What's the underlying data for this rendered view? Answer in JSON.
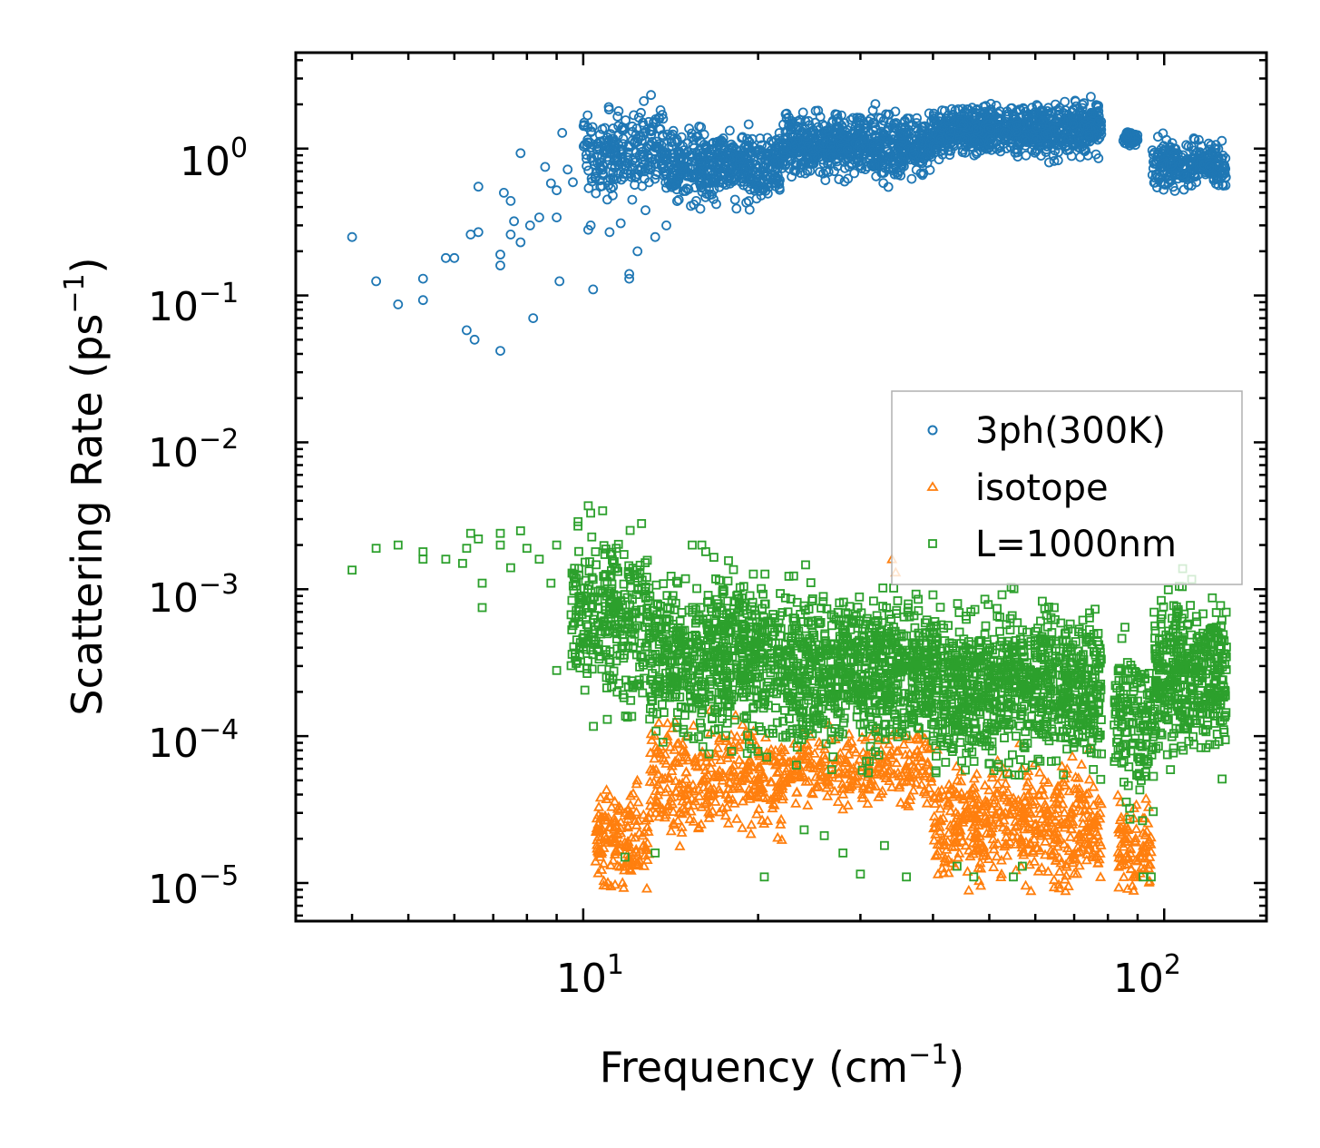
{
  "chart_data": {
    "type": "scatter",
    "xscale": "log",
    "yscale": "log",
    "xlim": [
      3.2,
      150
    ],
    "ylim": [
      5.5e-06,
      4.5
    ],
    "xlabel": "Frequency (cm",
    "xlabel_sup": "−1",
    "xlabel_end": ")",
    "ylabel": "Scattering Rate (ps",
    "ylabel_sup": "−1",
    "ylabel_end": ")",
    "x_ticks": [
      {
        "value": 10,
        "base": "10",
        "exp": "1"
      },
      {
        "value": 100,
        "base": "10",
        "exp": "2"
      }
    ],
    "y_ticks": [
      {
        "value": 1,
        "base": "10",
        "exp": "0"
      },
      {
        "value": 0.1,
        "base": "10",
        "exp": "−1"
      },
      {
        "value": 0.01,
        "base": "10",
        "exp": "−2"
      },
      {
        "value": 0.001,
        "base": "10",
        "exp": "−3"
      },
      {
        "value": 0.0001,
        "base": "10",
        "exp": "−4"
      },
      {
        "value": 1e-05,
        "base": "10",
        "exp": "−5"
      }
    ],
    "legend_position": "center-right",
    "series": [
      {
        "name": "3ph(300K)",
        "marker": "circle",
        "color": "#1f77b4",
        "points": [
          [
            4.0,
            0.25
          ],
          [
            4.4,
            0.125
          ],
          [
            4.8,
            0.087
          ],
          [
            5.3,
            0.093
          ],
          [
            5.3,
            0.13
          ],
          [
            5.8,
            0.18
          ],
          [
            6.0,
            0.18
          ],
          [
            6.3,
            0.058
          ],
          [
            6.4,
            0.26
          ],
          [
            6.5,
            0.05
          ],
          [
            6.6,
            0.27
          ],
          [
            6.6,
            0.55
          ],
          [
            7.2,
            0.19
          ],
          [
            7.2,
            0.16
          ],
          [
            7.2,
            0.042
          ],
          [
            7.3,
            0.5
          ],
          [
            7.5,
            0.26
          ],
          [
            7.5,
            0.44
          ],
          [
            7.6,
            0.32
          ],
          [
            7.8,
            0.23
          ],
          [
            7.8,
            0.93
          ],
          [
            8.1,
            0.3
          ],
          [
            8.2,
            0.07
          ],
          [
            8.4,
            0.34
          ],
          [
            8.6,
            0.75
          ],
          [
            8.8,
            0.58
          ],
          [
            9.0,
            0.34
          ],
          [
            9.0,
            0.52
          ],
          [
            9.2,
            1.28
          ],
          [
            9.4,
            0.72
          ],
          [
            9.6,
            0.59
          ],
          [
            10.2,
            0.28
          ],
          [
            10.3,
            0.3
          ],
          [
            10.4,
            0.11
          ],
          [
            11.1,
            0.27
          ],
          [
            11.6,
            0.31
          ],
          [
            12.0,
            0.14
          ],
          [
            12.0,
            0.13
          ],
          [
            12.4,
            0.2
          ],
          [
            12.8,
            0.38
          ],
          [
            13.3,
            0.25
          ],
          [
            13.9,
            0.3
          ],
          [
            11.0,
            0.45
          ],
          [
            9.1,
            0.125
          ],
          [
            10.7,
            0.55
          ]
        ],
        "clusters": [
          {
            "x_range": [
              10,
              14
            ],
            "y_center": 0.95,
            "y_spread": 0.25,
            "count": 260
          },
          {
            "x_range": [
              14,
              22
            ],
            "y_center": 0.75,
            "y_spread": 0.2,
            "count": 480
          },
          {
            "x_range": [
              22,
              40
            ],
            "y_center": 1.05,
            "y_spread": 0.17,
            "count": 700
          },
          {
            "x_range": [
              40,
              78
            ],
            "y_center": 1.35,
            "y_spread": 0.14,
            "count": 850
          },
          {
            "x_range": [
              85,
              90
            ],
            "y_center": 1.15,
            "y_spread": 0.05,
            "count": 45
          },
          {
            "x_range": [
              95,
              128
            ],
            "y_center": 0.78,
            "y_spread": 0.14,
            "count": 260
          }
        ]
      },
      {
        "name": "isotope",
        "marker": "triangle",
        "color": "#ff7f0e",
        "points": [
          [
            34,
            0.0016
          ],
          [
            34.5,
            0.0013
          ]
        ],
        "clusters": [
          {
            "x_range": [
              10.5,
              13
            ],
            "y_center": 2e-05,
            "y_spread": 0.3,
            "count": 160
          },
          {
            "x_range": [
              13,
              22
            ],
            "y_center": 5e-05,
            "y_spread": 0.3,
            "count": 340
          },
          {
            "x_range": [
              22,
              40
            ],
            "y_center": 6e-05,
            "y_spread": 0.2,
            "count": 280
          },
          {
            "x_range": [
              40,
              78
            ],
            "y_center": 2.5e-05,
            "y_spread": 0.35,
            "count": 520
          },
          {
            "x_range": [
              83,
              95
            ],
            "y_center": 1.8e-05,
            "y_spread": 0.3,
            "count": 90
          }
        ]
      },
      {
        "name": "L=1000nm",
        "marker": "square",
        "color": "#2ca02c",
        "points": [
          [
            4.0,
            0.00135
          ],
          [
            4.4,
            0.0019
          ],
          [
            4.8,
            0.002
          ],
          [
            5.3,
            0.0018
          ],
          [
            5.3,
            0.0016
          ],
          [
            5.8,
            0.0016
          ],
          [
            6.2,
            0.0015
          ],
          [
            6.3,
            0.0019
          ],
          [
            6.4,
            0.0024
          ],
          [
            6.6,
            0.0022
          ],
          [
            6.7,
            0.0011
          ],
          [
            6.7,
            0.00075
          ],
          [
            7.2,
            0.002
          ],
          [
            7.2,
            0.0024
          ],
          [
            7.5,
            0.0014
          ],
          [
            7.8,
            0.0025
          ],
          [
            8.0,
            0.0019
          ],
          [
            8.4,
            0.0016
          ],
          [
            8.8,
            0.0011
          ],
          [
            9.0,
            0.00028
          ],
          [
            9.0,
            0.002
          ],
          [
            10.2,
            0.0037
          ],
          [
            10.3,
            0.0033
          ],
          [
            10.5,
            0.0018
          ],
          [
            11.0,
            0.00013
          ],
          [
            11.4,
            0.0019
          ],
          [
            11.8,
            1.5e-05
          ],
          [
            12.6,
            0.0028
          ],
          [
            13.3,
            1.6e-05
          ],
          [
            15.4,
            0.002
          ],
          [
            16.0,
            0.002
          ],
          [
            20.5,
            1.1e-05
          ],
          [
            24.0,
            2.3e-05
          ],
          [
            26.0,
            2.1e-05
          ],
          [
            28.0,
            1.6e-05
          ],
          [
            30.0,
            1.15e-05
          ],
          [
            33.0,
            1.8e-05
          ],
          [
            36.0,
            1.1e-05
          ],
          [
            44.0,
            1.3e-05
          ],
          [
            47.0,
            1.1e-05
          ],
          [
            55.0,
            1.1e-05
          ],
          [
            57.0,
            1.3e-05
          ],
          [
            92.0,
            1.1e-05
          ],
          [
            95.0,
            1.1e-05
          ]
        ],
        "clusters": [
          {
            "x_range": [
              9.5,
              13
            ],
            "y_center": 0.00065,
            "y_spread": 0.45,
            "count": 300
          },
          {
            "x_range": [
              13,
              22
            ],
            "y_center": 0.00035,
            "y_spread": 0.45,
            "count": 650
          },
          {
            "x_range": [
              22,
              40
            ],
            "y_center": 0.00028,
            "y_spread": 0.45,
            "count": 800
          },
          {
            "x_range": [
              40,
              78
            ],
            "y_center": 0.00022,
            "y_spread": 0.45,
            "count": 900
          },
          {
            "x_range": [
              82,
              96
            ],
            "y_center": 0.00012,
            "y_spread": 0.45,
            "count": 150
          },
          {
            "x_range": [
              96,
              128
            ],
            "y_center": 0.00025,
            "y_spread": 0.45,
            "count": 420
          }
        ]
      }
    ]
  }
}
